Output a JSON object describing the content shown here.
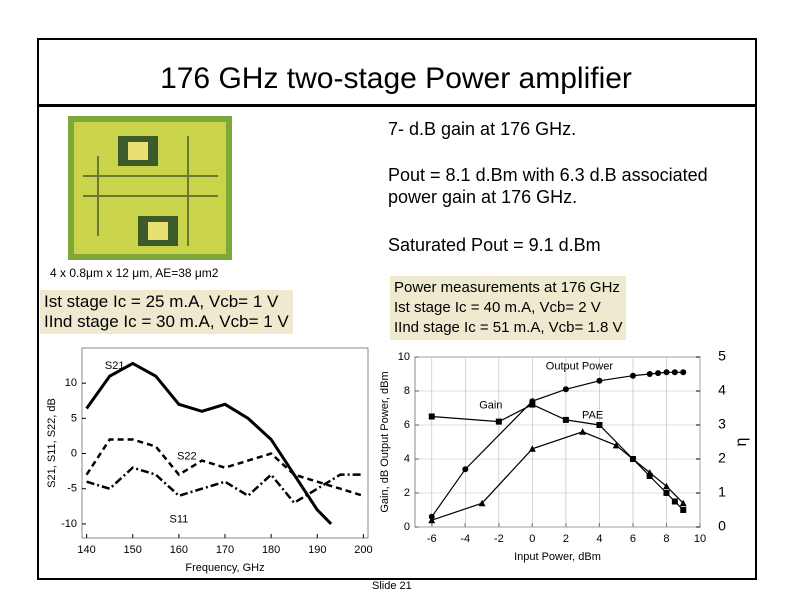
{
  "title": "176 GHz two-stage Power amplifier",
  "bullets": [
    "7- d.B gain at 176 GHz.",
    "Pout = 8.1 d.Bm with 6.3 d.B associated power gain at 176 GHz.",
    "Saturated Pout = 9.1 d.Bm"
  ],
  "device_caption": "4 x 0.8μm x 12 μm, AE=38 μm2",
  "left_box": [
    "Ist stage Ic = 25 m.A, Vcb= 1 V",
    "IInd stage Ic = 30 m.A, Vcb= 1 V"
  ],
  "right_box": [
    "Power measurements at 176 GHz",
    "Ist stage Ic = 40 m.A, Vcb= 2 V",
    "IInd stage Ic = 51 m.A, Vcb= 1.8 V"
  ],
  "footer": "Slide 21",
  "chart_data": [
    {
      "type": "line",
      "xlabel": "Frequency, GHz",
      "ylabel": "S21, S11, S22, dB",
      "xlim": [
        139,
        201
      ],
      "xticks": [
        140,
        150,
        160,
        170,
        180,
        190,
        200
      ],
      "ylim": [
        -12,
        15
      ],
      "yticks": [
        -10,
        -5,
        0,
        5,
        10
      ],
      "grid": false,
      "series": [
        {
          "name": "S21",
          "color": "#000000",
          "dash": "solid",
          "width": 3,
          "x": [
            140,
            145,
            150,
            155,
            160,
            165,
            170,
            175,
            180,
            185,
            190,
            193
          ],
          "values": [
            6.4,
            11,
            12.8,
            11,
            7,
            6,
            7,
            5,
            2,
            -3,
            -8,
            -10
          ]
        },
        {
          "name": "S22",
          "color": "#000000",
          "dash": "dashed",
          "width": 2.5,
          "x": [
            140,
            145,
            150,
            155,
            160,
            165,
            170,
            175,
            180,
            185,
            190,
            195,
            200
          ],
          "values": [
            -3,
            2,
            2,
            1,
            -3,
            -1,
            -2,
            -1,
            0,
            -3,
            -4,
            -5,
            -6
          ]
        },
        {
          "name": "S11",
          "color": "#000000",
          "dash": "dashdot",
          "width": 2.5,
          "x": [
            140,
            145,
            150,
            155,
            160,
            165,
            170,
            175,
            180,
            185,
            190,
            195,
            200
          ],
          "values": [
            -4,
            -5,
            -2,
            -3,
            -6,
            -5,
            -4,
            -6,
            -3,
            -7,
            -5,
            -3,
            -3
          ]
        }
      ]
    },
    {
      "type": "line",
      "xlabel": "Input Power, dBm",
      "ylabel": "Gain, dB Output Power, dBm",
      "y2label": "η",
      "xlim": [
        -7,
        10
      ],
      "xticks": [
        -6,
        -4,
        -2,
        0,
        2,
        4,
        6,
        8,
        10
      ],
      "ylim": [
        0,
        10
      ],
      "yticks": [
        0,
        2,
        4,
        6,
        8,
        10
      ],
      "y2lim": [
        0,
        5
      ],
      "y2ticks": [
        0,
        1,
        2,
        3,
        4,
        5
      ],
      "grid": true,
      "series": [
        {
          "name": "Output Power",
          "color": "#000000",
          "marker": "circle",
          "x": [
            -6,
            -4,
            0,
            2,
            4,
            6,
            7,
            7.5,
            8,
            8.5,
            9
          ],
          "values": [
            0.6,
            3.4,
            7.4,
            8.1,
            8.6,
            8.9,
            9.0,
            9.05,
            9.1,
            9.1,
            9.1
          ]
        },
        {
          "name": "Gain",
          "color": "#000000",
          "marker": "square",
          "x": [
            -6,
            -2,
            0,
            2,
            4,
            6,
            7,
            8,
            8.5,
            9
          ],
          "values": [
            6.5,
            6.2,
            7.2,
            6.3,
            6.0,
            4.0,
            3.0,
            2.0,
            1.5,
            1.0
          ]
        },
        {
          "name": "PAE",
          "color": "#000000",
          "marker": "triangle",
          "axis": "y2",
          "x": [
            -6,
            -3,
            0,
            3,
            5,
            7,
            8,
            9
          ],
          "values": [
            0.2,
            0.7,
            2.3,
            2.8,
            2.4,
            1.6,
            1.2,
            0.7
          ]
        }
      ]
    }
  ]
}
